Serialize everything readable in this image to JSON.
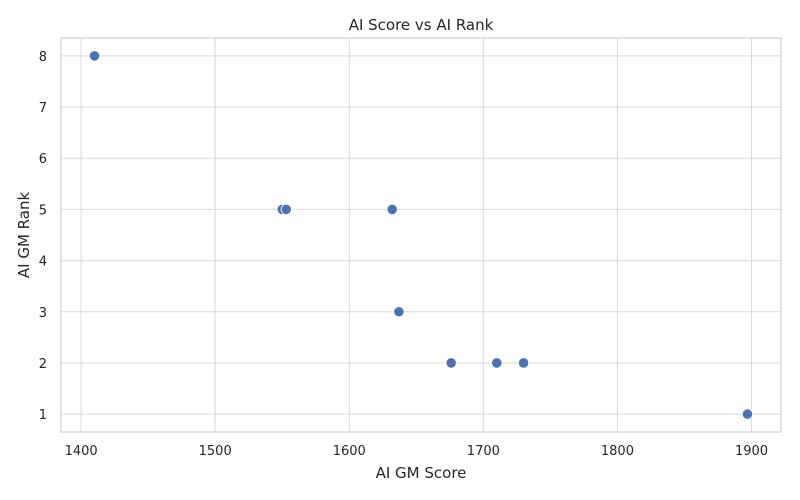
{
  "chart_data": {
    "type": "scatter",
    "title": "AI Score vs AI Rank",
    "xlabel": "AI GM Score",
    "ylabel": "AI GM Rank",
    "xlim": [
      1385,
      1922
    ],
    "ylim": [
      0.65,
      8.35
    ],
    "xticks": [
      1400,
      1500,
      1600,
      1700,
      1800,
      1900
    ],
    "yticks": [
      1,
      2,
      3,
      4,
      5,
      6,
      7,
      8
    ],
    "grid": true,
    "point_color": "#4c72b0",
    "points": [
      {
        "x": 1410,
        "y": 8
      },
      {
        "x": 1550,
        "y": 5
      },
      {
        "x": 1553,
        "y": 5
      },
      {
        "x": 1632,
        "y": 5
      },
      {
        "x": 1637,
        "y": 3
      },
      {
        "x": 1676,
        "y": 2
      },
      {
        "x": 1710,
        "y": 2
      },
      {
        "x": 1730,
        "y": 2
      },
      {
        "x": 1897,
        "y": 1
      }
    ]
  }
}
